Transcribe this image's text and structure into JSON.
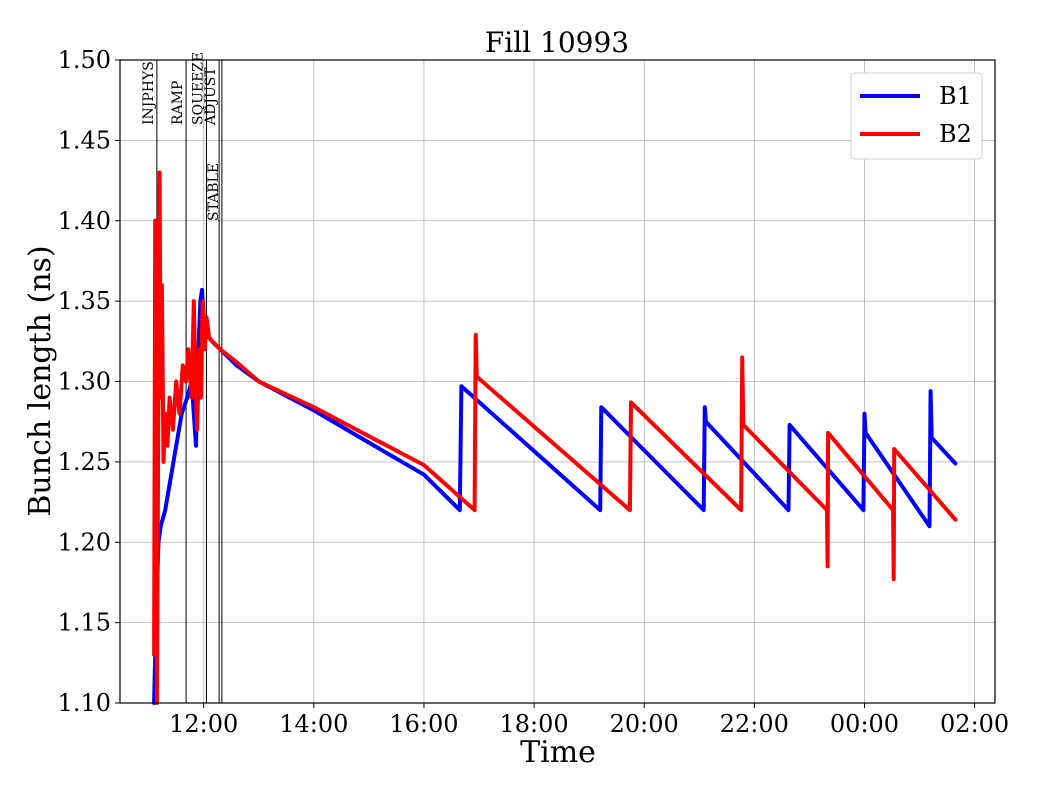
{
  "chart_data": {
    "type": "line",
    "title": "Fill 10993",
    "xlabel": "Time",
    "ylabel": "Bunch length (ns)",
    "xlim_hours": [
      10.48,
      26.37
    ],
    "ylim": [
      1.1,
      1.5
    ],
    "grid": true,
    "legend_position": "top-right",
    "x_ticks": [
      {
        "t": 12,
        "label": "12:00"
      },
      {
        "t": 14,
        "label": "14:00"
      },
      {
        "t": 16,
        "label": "16:00"
      },
      {
        "t": 18,
        "label": "18:00"
      },
      {
        "t": 20,
        "label": "20:00"
      },
      {
        "t": 22,
        "label": "22:00"
      },
      {
        "t": 24,
        "label": "00:00"
      },
      {
        "t": 26,
        "label": "02:00"
      }
    ],
    "y_ticks": [
      {
        "v": 1.1,
        "label": "1.10"
      },
      {
        "v": 1.15,
        "label": "1.15"
      },
      {
        "v": 1.2,
        "label": "1.20"
      },
      {
        "v": 1.25,
        "label": "1.25"
      },
      {
        "v": 1.3,
        "label": "1.30"
      },
      {
        "v": 1.35,
        "label": "1.35"
      },
      {
        "v": 1.4,
        "label": "1.40"
      },
      {
        "v": 1.45,
        "label": "1.45"
      },
      {
        "v": 1.5,
        "label": "1.50"
      }
    ],
    "phases": [
      {
        "name": "INJPHYS",
        "t": 11.15,
        "row": 1
      },
      {
        "name": "RAMP",
        "t": 11.68,
        "row": 1
      },
      {
        "name": "SQUEEZE",
        "t": 12.05,
        "row": 1
      },
      {
        "name": "ADJUST",
        "t": 12.28,
        "row": 1
      },
      {
        "name": "STABLE",
        "t": 12.33,
        "row": 2
      }
    ],
    "series": [
      {
        "name": "B1",
        "color": "#0000ff",
        "points": [
          [
            11.1,
            1.1
          ],
          [
            11.14,
            1.16
          ],
          [
            11.18,
            1.2
          ],
          [
            11.22,
            1.21
          ],
          [
            11.3,
            1.22
          ],
          [
            11.4,
            1.24
          ],
          [
            11.5,
            1.26
          ],
          [
            11.6,
            1.28
          ],
          [
            11.7,
            1.29
          ],
          [
            11.78,
            1.3
          ],
          [
            11.84,
            1.27
          ],
          [
            11.86,
            1.26
          ],
          [
            11.88,
            1.3
          ],
          [
            11.94,
            1.35
          ],
          [
            11.97,
            1.357
          ],
          [
            12.0,
            1.34
          ],
          [
            12.05,
            1.33
          ],
          [
            12.15,
            1.325
          ],
          [
            12.3,
            1.32
          ],
          [
            12.6,
            1.31
          ],
          [
            13.0,
            1.3
          ],
          [
            14.0,
            1.282
          ],
          [
            15.0,
            1.262
          ],
          [
            16.0,
            1.242
          ],
          [
            16.65,
            1.22
          ],
          [
            16.68,
            1.297
          ],
          [
            19.2,
            1.22
          ],
          [
            19.22,
            1.284
          ],
          [
            21.08,
            1.22
          ],
          [
            21.1,
            1.284
          ],
          [
            21.12,
            1.275
          ],
          [
            22.62,
            1.22
          ],
          [
            22.64,
            1.273
          ],
          [
            23.98,
            1.22
          ],
          [
            24.0,
            1.28
          ],
          [
            24.02,
            1.268
          ],
          [
            25.18,
            1.21
          ],
          [
            25.2,
            1.294
          ],
          [
            25.22,
            1.265
          ],
          [
            25.65,
            1.249
          ]
        ]
      },
      {
        "name": "B2",
        "color": "#ff0000",
        "points": [
          [
            11.1,
            1.13
          ],
          [
            11.12,
            1.4
          ],
          [
            11.15,
            1.1
          ],
          [
            11.18,
            1.3
          ],
          [
            11.2,
            1.43
          ],
          [
            11.22,
            1.29
          ],
          [
            11.24,
            1.36
          ],
          [
            11.27,
            1.25
          ],
          [
            11.3,
            1.28
          ],
          [
            11.34,
            1.26
          ],
          [
            11.38,
            1.29
          ],
          [
            11.44,
            1.27
          ],
          [
            11.5,
            1.3
          ],
          [
            11.56,
            1.28
          ],
          [
            11.62,
            1.31
          ],
          [
            11.68,
            1.3
          ],
          [
            11.72,
            1.32
          ],
          [
            11.78,
            1.29
          ],
          [
            11.82,
            1.35
          ],
          [
            11.85,
            1.3
          ],
          [
            11.88,
            1.27
          ],
          [
            11.92,
            1.32
          ],
          [
            11.95,
            1.29
          ],
          [
            11.98,
            1.35
          ],
          [
            12.02,
            1.32
          ],
          [
            12.05,
            1.34
          ],
          [
            12.1,
            1.327
          ],
          [
            12.3,
            1.32
          ],
          [
            12.6,
            1.312
          ],
          [
            13.0,
            1.3
          ],
          [
            14.0,
            1.284
          ],
          [
            15.0,
            1.266
          ],
          [
            16.0,
            1.248
          ],
          [
            16.92,
            1.22
          ],
          [
            16.94,
            1.329
          ],
          [
            16.96,
            1.303
          ],
          [
            19.74,
            1.22
          ],
          [
            19.76,
            1.287
          ],
          [
            21.76,
            1.22
          ],
          [
            21.78,
            1.315
          ],
          [
            21.8,
            1.273
          ],
          [
            23.32,
            1.22
          ],
          [
            23.33,
            1.185
          ],
          [
            23.34,
            1.268
          ],
          [
            24.52,
            1.22
          ],
          [
            24.53,
            1.177
          ],
          [
            24.54,
            1.258
          ],
          [
            25.65,
            1.214
          ]
        ]
      }
    ]
  }
}
